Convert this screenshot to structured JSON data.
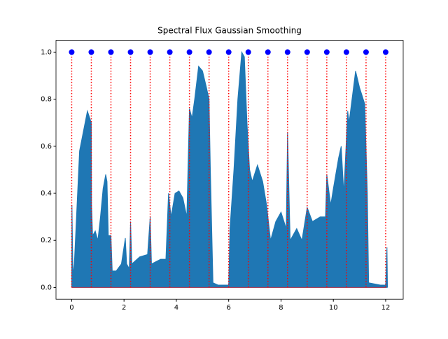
{
  "chart_data": {
    "type": "line",
    "title": "Spectral Flux Gaussian Smoothing",
    "xlim": [
      -0.6,
      12.67
    ],
    "ylim": [
      -0.05,
      1.05
    ],
    "xticks": [
      0,
      2,
      4,
      6,
      8,
      10,
      12
    ],
    "yticks": [
      {
        "value": 0,
        "label": "0.0"
      },
      {
        "value": 0.2,
        "label": "0.2"
      },
      {
        "value": 0.4,
        "label": "0.4"
      },
      {
        "value": 0.6,
        "label": "0.6"
      },
      {
        "value": 0.8,
        "label": "0.8"
      },
      {
        "value": 1,
        "label": "1.0"
      }
    ],
    "series": [
      {
        "color": "#1f77b4",
        "x": [
          0,
          0.01,
          0.05,
          0.1,
          0.3,
          0.6,
          0.75,
          0.76,
          0.8,
          0.9,
          1.0,
          1.1,
          1.2,
          1.3,
          1.35,
          1.4,
          1.5,
          1.55,
          1.7,
          1.9,
          2.05,
          2.1,
          2.2,
          2.25,
          2.3,
          2.6,
          2.9,
          3.0,
          3.05,
          3.4,
          3.6,
          3.7,
          3.8,
          3.95,
          4.1,
          4.25,
          4.4,
          4.5,
          4.6,
          4.7,
          4.85,
          5.0,
          5.15,
          5.25,
          5.3,
          5.4,
          5.6,
          6.0,
          6.05,
          6.2,
          6.35,
          6.5,
          6.6,
          6.7,
          6.8,
          6.9,
          7.1,
          7.3,
          7.45,
          7.6,
          7.8,
          8.0,
          8.2,
          8.25,
          8.35,
          8.6,
          8.8,
          9.0,
          9.2,
          9.5,
          9.7,
          9.75,
          9.9,
          10.0,
          10.2,
          10.3,
          10.4,
          10.55,
          10.6,
          10.85,
          11.0,
          11.2,
          11.3,
          11.35,
          11.8,
          12.0,
          12.05,
          12.07
        ],
        "values": [
          0,
          0.35,
          0.05,
          0.1,
          0.58,
          0.75,
          0.7,
          0.35,
          0.22,
          0.24,
          0.2,
          0.3,
          0.42,
          0.48,
          0.45,
          0.22,
          0.22,
          0.07,
          0.07,
          0.1,
          0.21,
          0.1,
          0.08,
          0.28,
          0.1,
          0.13,
          0.14,
          0.3,
          0.1,
          0.12,
          0.12,
          0.4,
          0.3,
          0.4,
          0.41,
          0.38,
          0.3,
          0.76,
          0.72,
          0.8,
          0.94,
          0.92,
          0.85,
          0.8,
          0.5,
          0.02,
          0.01,
          0.01,
          0.25,
          0.5,
          0.8,
          1.0,
          0.98,
          0.7,
          0.5,
          0.45,
          0.52,
          0.45,
          0.35,
          0.2,
          0.28,
          0.32,
          0.25,
          0.66,
          0.2,
          0.25,
          0.2,
          0.34,
          0.28,
          0.3,
          0.3,
          0.48,
          0.35,
          0.42,
          0.55,
          0.6,
          0.4,
          0.75,
          0.7,
          0.92,
          0.85,
          0.78,
          0.4,
          0.02,
          0.01,
          0.01,
          0.17,
          0
        ]
      },
      {
        "color": "#0000ff",
        "x": [
          0,
          0.75,
          1.5,
          2.25,
          3,
          3.75,
          4.5,
          5.25,
          6,
          6.75,
          7.5,
          8.25,
          9,
          9.75,
          10.5,
          11.25,
          12
        ],
        "values": [
          1,
          1,
          1,
          1,
          1,
          1,
          1,
          1,
          1,
          1,
          1,
          1,
          1,
          1,
          1,
          1,
          1
        ]
      }
    ],
    "vline_color": "#ff0000"
  }
}
